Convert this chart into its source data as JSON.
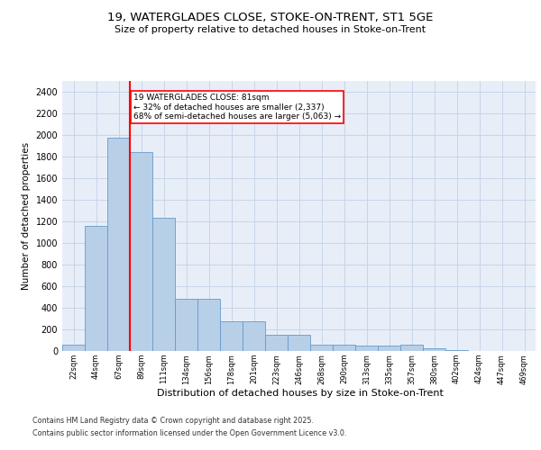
{
  "title_line1": "19, WATERGLADES CLOSE, STOKE-ON-TRENT, ST1 5GE",
  "title_line2": "Size of property relative to detached houses in Stoke-on-Trent",
  "xlabel": "Distribution of detached houses by size in Stoke-on-Trent",
  "ylabel": "Number of detached properties",
  "footnote_line1": "Contains HM Land Registry data © Crown copyright and database right 2025.",
  "footnote_line2": "Contains public sector information licensed under the Open Government Licence v3.0.",
  "bar_labels": [
    "22sqm",
    "44sqm",
    "67sqm",
    "89sqm",
    "111sqm",
    "134sqm",
    "156sqm",
    "178sqm",
    "201sqm",
    "223sqm",
    "246sqm",
    "268sqm",
    "290sqm",
    "313sqm",
    "335sqm",
    "357sqm",
    "380sqm",
    "402sqm",
    "424sqm",
    "447sqm",
    "469sqm"
  ],
  "bar_values": [
    55,
    1160,
    1975,
    1840,
    1230,
    480,
    480,
    275,
    275,
    150,
    150,
    60,
    60,
    48,
    48,
    60,
    22,
    8,
    4,
    4,
    4
  ],
  "bar_color": "#b8cfe8",
  "bar_edge_color": "#6699cc",
  "grid_color": "#c5d5e8",
  "background_color": "#e8eef8",
  "vline_color": "red",
  "annotation_text": "19 WATERGLADES CLOSE: 81sqm\n← 32% of detached houses are smaller (2,337)\n68% of semi-detached houses are larger (5,063) →",
  "annotation_box_color": "white",
  "annotation_box_edge": "red",
  "ylim": [
    0,
    2500
  ],
  "yticks": [
    0,
    200,
    400,
    600,
    800,
    1000,
    1200,
    1400,
    1600,
    1800,
    2000,
    2200,
    2400
  ]
}
